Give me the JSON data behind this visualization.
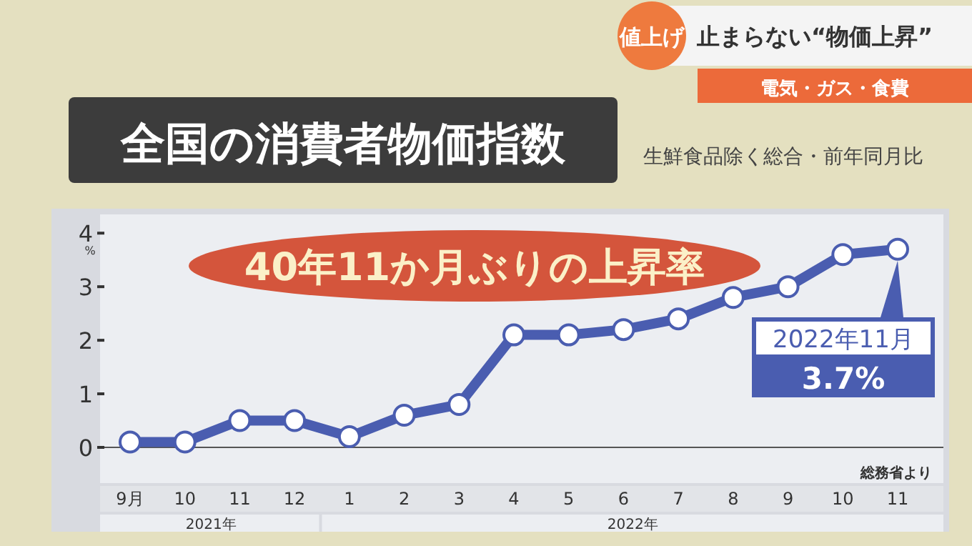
{
  "chart_data": {
    "type": "line",
    "title": "全国の消費者物価指数",
    "subtitle": "生鮮食品除く総合・前年同月比",
    "ylabel": "%",
    "categories": [
      "9月",
      "10",
      "11",
      "12",
      "1",
      "2",
      "3",
      "4",
      "5",
      "6",
      "7",
      "8",
      "9",
      "10",
      "11"
    ],
    "series": [
      {
        "color": "#4a5db0",
        "values": [
          0.1,
          0.1,
          0.5,
          0.5,
          0.2,
          0.6,
          0.8,
          2.1,
          2.1,
          2.2,
          2.4,
          2.8,
          3.0,
          3.6,
          3.7
        ]
      }
    ],
    "ylim": [
      0,
      4.35
    ],
    "yticks": [
      0,
      1,
      2,
      3,
      4
    ],
    "marker": "circle",
    "grid": false,
    "annotations": [
      "値上げ",
      "止まらない“物価上昇”",
      "電気・ガス・食費",
      "40年11か月ぶりの上昇率",
      "2022年11月",
      "3.7%",
      "総務省より",
      "2021年",
      "2022年"
    ]
  }
}
